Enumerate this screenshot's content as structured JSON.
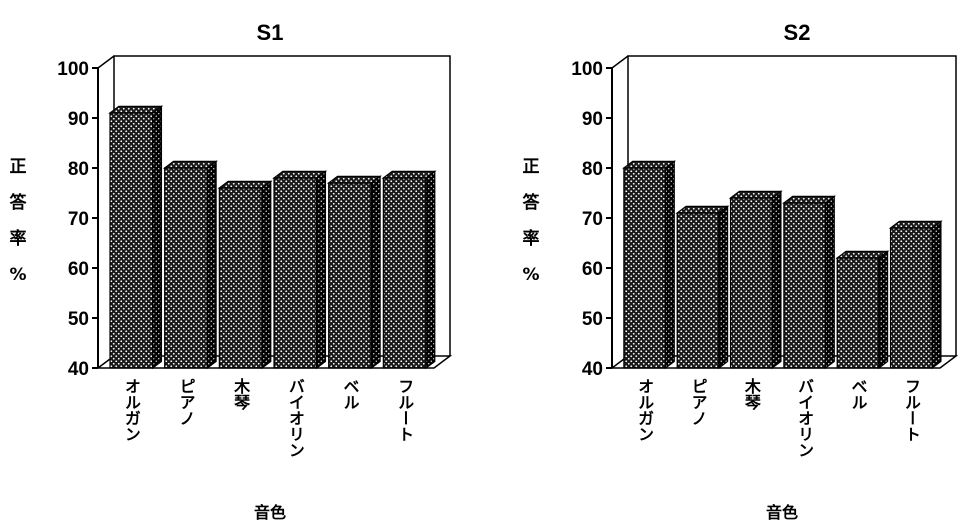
{
  "chart_data": [
    {
      "type": "bar",
      "title": "S1",
      "xlabel": "音色",
      "ylabel": "正答率%",
      "ylim": [
        40,
        100
      ],
      "yticks": [
        40,
        50,
        60,
        70,
        80,
        90,
        100
      ],
      "categories": [
        "オルガン",
        "ピアノ",
        "木琴",
        "バイオリン",
        "ベル",
        "フルート"
      ],
      "values": [
        91,
        80,
        76,
        78,
        77,
        78
      ],
      "grid": false,
      "bar_style": "3d-hatched"
    },
    {
      "type": "bar",
      "title": "S2",
      "xlabel": "音色",
      "ylabel": "正答率%",
      "ylim": [
        40,
        100
      ],
      "yticks": [
        40,
        50,
        60,
        70,
        80,
        90,
        100
      ],
      "categories": [
        "オルガン",
        "ピアノ",
        "木琴",
        "バイオリン",
        "ベル",
        "フルート"
      ],
      "values": [
        80,
        71,
        74,
        73,
        62,
        68
      ],
      "grid": false,
      "bar_style": "3d-hatched"
    }
  ],
  "colors": {
    "bar_fill": "#1a1a1a",
    "bar_hatch": "#ffffff",
    "axis": "#000000"
  }
}
